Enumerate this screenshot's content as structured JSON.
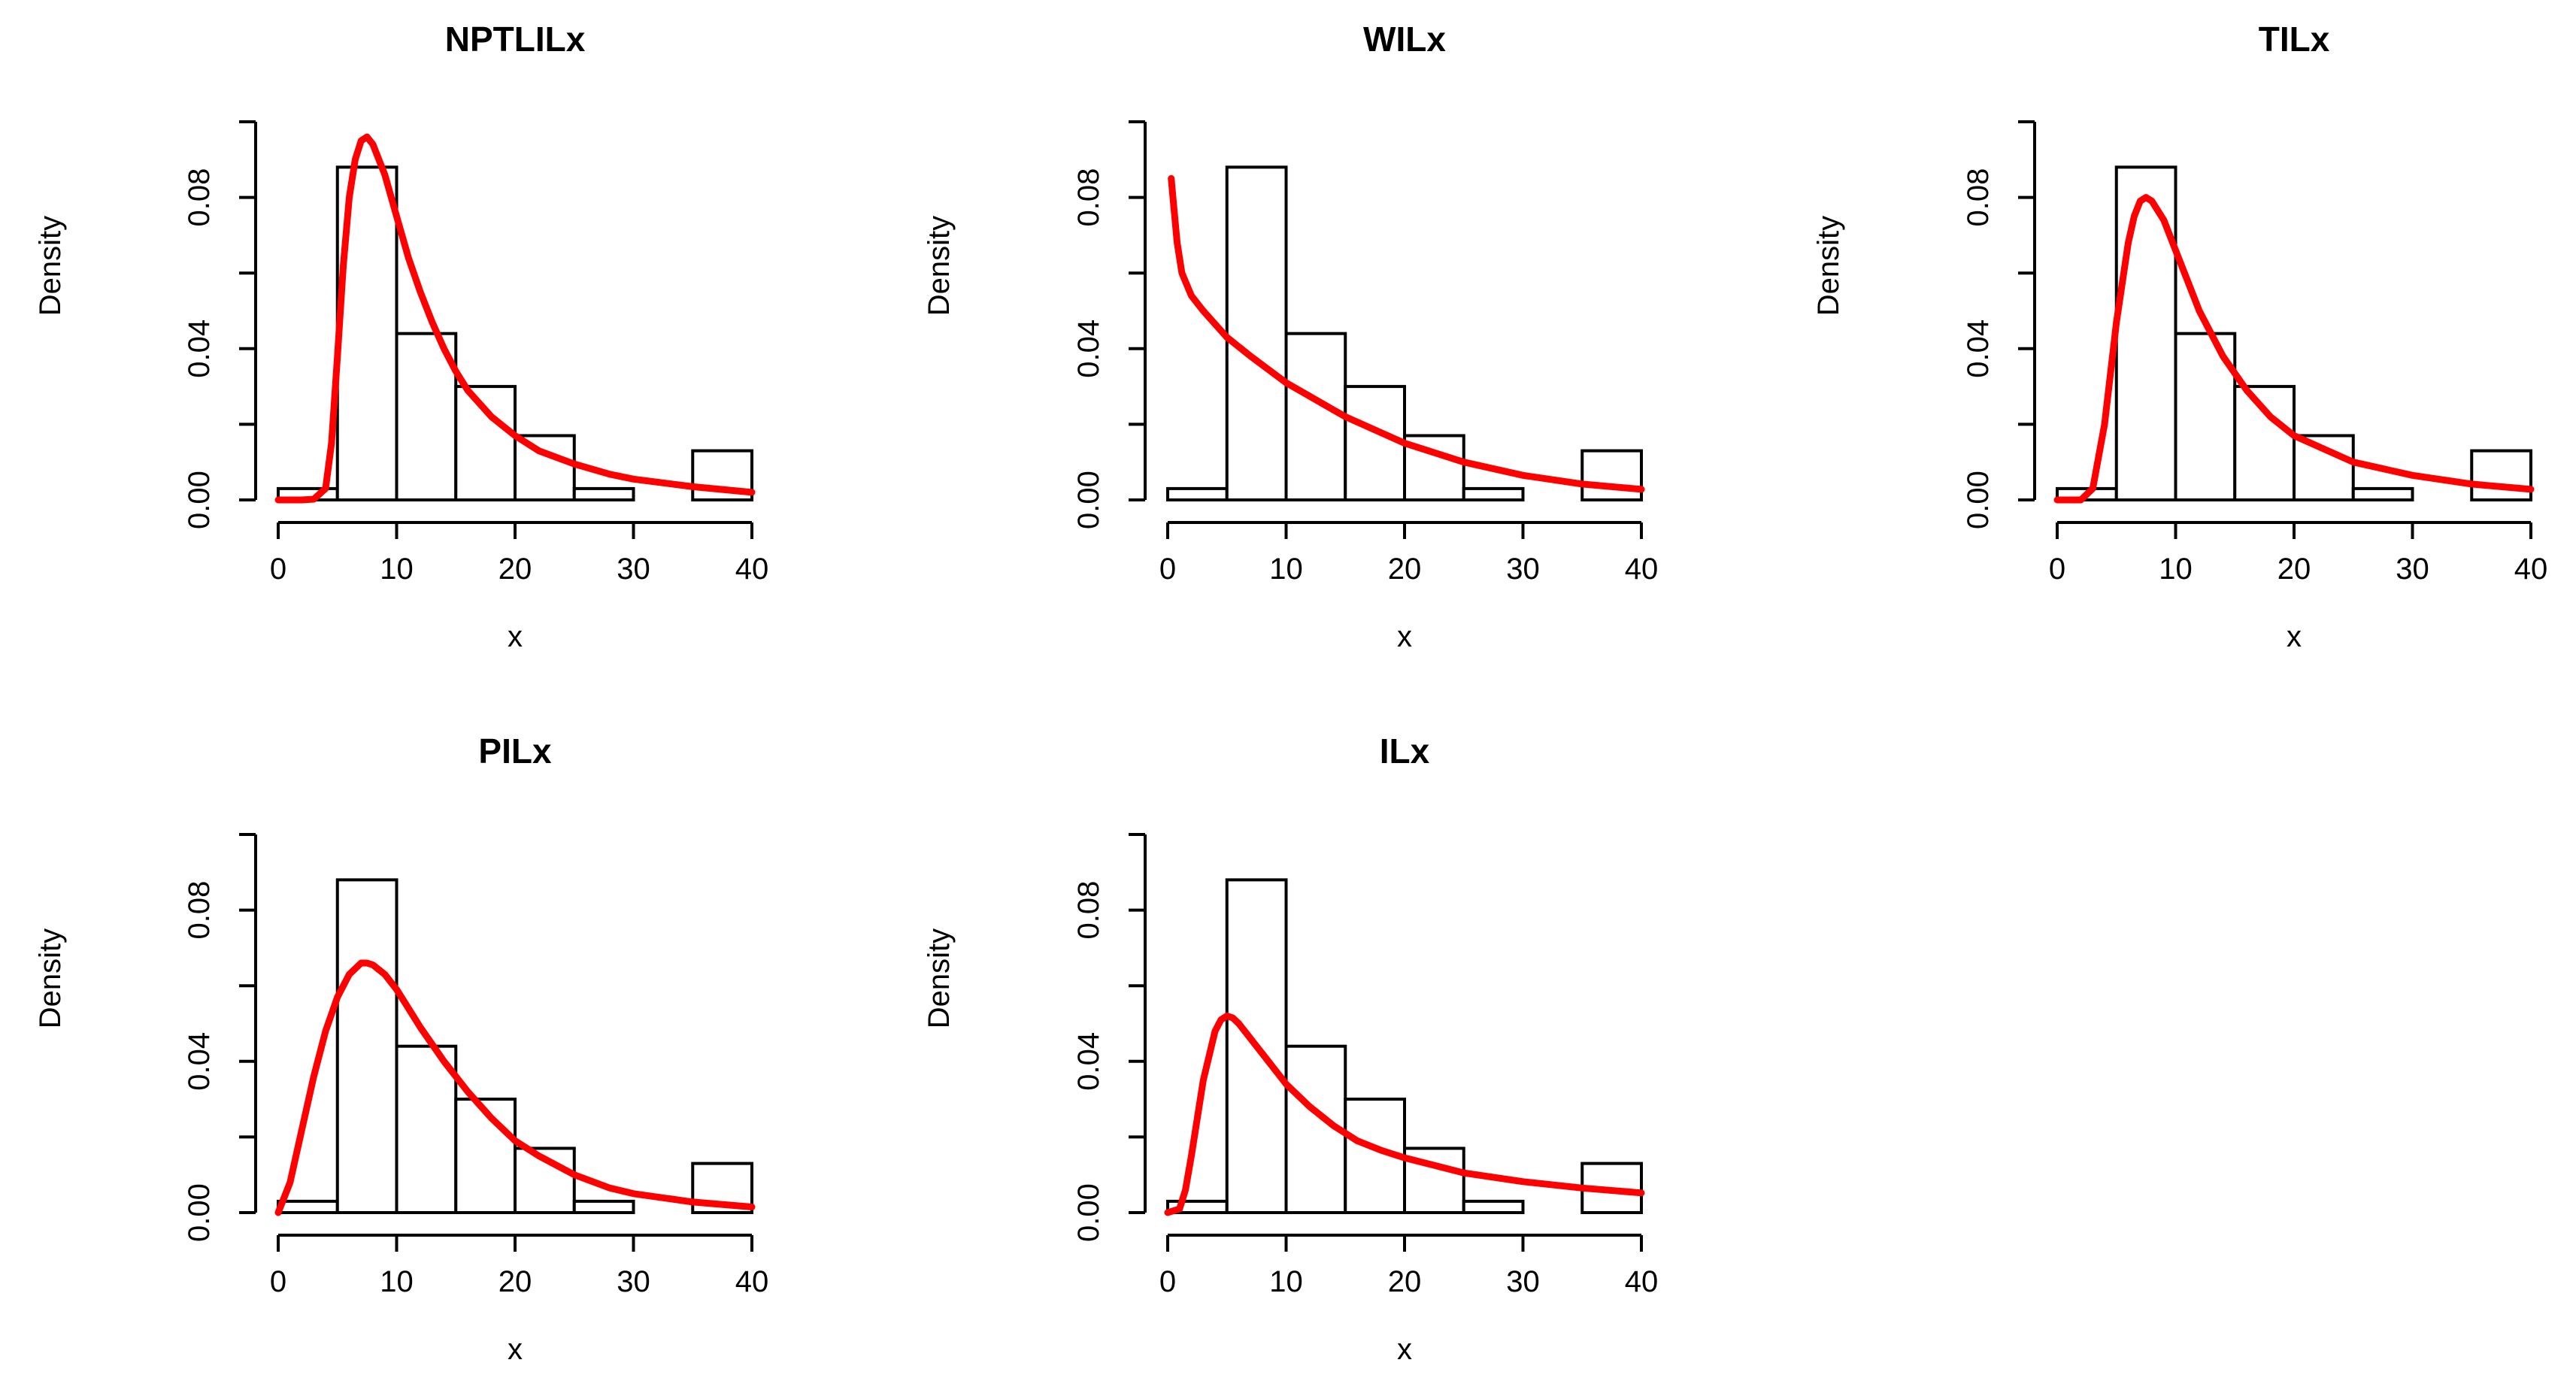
{
  "colors": {
    "curve": "#ff0000",
    "bar_stroke": "#000000",
    "bar_fill": "#ffffff",
    "axis": "#000000"
  },
  "chart_data": [
    {
      "type": "bar",
      "title": "NPTLILx",
      "xlabel": "x",
      "ylabel": "Density",
      "xlim": [
        0,
        40
      ],
      "ylim": [
        0,
        0.1
      ],
      "x_ticks": [
        0,
        10,
        20,
        30,
        40
      ],
      "y_ticks": [
        0,
        0.02,
        0.04,
        0.06,
        0.08,
        0.1
      ],
      "y_tick_labels": [
        "0.00",
        "0.04",
        "0.08"
      ],
      "bin_edges": [
        0,
        5,
        10,
        15,
        20,
        25,
        30,
        35,
        40
      ],
      "histogram_density": [
        0.003,
        0.088,
        0.044,
        0.03,
        0.017,
        0.003,
        0,
        0.013
      ],
      "fitted_curve": {
        "x": [
          0,
          2,
          3,
          4,
          4.5,
          5,
          5.5,
          6,
          6.5,
          7,
          7.5,
          8,
          9,
          10,
          11,
          12,
          13,
          14,
          15,
          16,
          18,
          20,
          22,
          25,
          28,
          30,
          35,
          40
        ],
        "y": [
          0,
          0,
          0.0002,
          0.003,
          0.015,
          0.038,
          0.062,
          0.08,
          0.09,
          0.095,
          0.096,
          0.094,
          0.086,
          0.075,
          0.064,
          0.055,
          0.047,
          0.04,
          0.034,
          0.029,
          0.022,
          0.017,
          0.013,
          0.0095,
          0.0068,
          0.0055,
          0.0035,
          0.002
        ]
      }
    },
    {
      "type": "bar",
      "title": "WILx",
      "xlabel": "x",
      "ylabel": "Density",
      "xlim": [
        0,
        40
      ],
      "ylim": [
        0,
        0.1
      ],
      "x_ticks": [
        0,
        10,
        20,
        30,
        40
      ],
      "y_ticks": [
        0,
        0.02,
        0.04,
        0.06,
        0.08,
        0.1
      ],
      "y_tick_labels": [
        "0.00",
        "0.04",
        "0.08"
      ],
      "bin_edges": [
        0,
        5,
        10,
        15,
        20,
        25,
        30,
        35,
        40
      ],
      "histogram_density": [
        0.003,
        0.088,
        0.044,
        0.03,
        0.017,
        0.003,
        0,
        0.013
      ],
      "fitted_curve": {
        "x": [
          0.3,
          0.5,
          0.8,
          1.2,
          2,
          3,
          5,
          7,
          10,
          15,
          20,
          25,
          30,
          35,
          40
        ],
        "y": [
          0.085,
          0.078,
          0.068,
          0.06,
          0.054,
          0.05,
          0.043,
          0.038,
          0.031,
          0.022,
          0.015,
          0.01,
          0.0065,
          0.0042,
          0.0028
        ]
      }
    },
    {
      "type": "bar",
      "title": "TILx",
      "xlabel": "x",
      "ylabel": "Density",
      "xlim": [
        0,
        40
      ],
      "ylim": [
        0,
        0.1
      ],
      "x_ticks": [
        0,
        10,
        20,
        30,
        40
      ],
      "y_ticks": [
        0,
        0.02,
        0.04,
        0.06,
        0.08,
        0.1
      ],
      "y_tick_labels": [
        "0.00",
        "0.04",
        "0.08"
      ],
      "bin_edges": [
        0,
        5,
        10,
        15,
        20,
        25,
        30,
        35,
        40
      ],
      "histogram_density": [
        0.003,
        0.088,
        0.044,
        0.03,
        0.017,
        0.003,
        0,
        0.013
      ],
      "fitted_curve": {
        "x": [
          0,
          2,
          3,
          4,
          5,
          6,
          6.5,
          7,
          7.5,
          8,
          9,
          10,
          11,
          12,
          14,
          16,
          18,
          20,
          25,
          30,
          35,
          40
        ],
        "y": [
          0,
          0,
          0.003,
          0.02,
          0.047,
          0.068,
          0.075,
          0.079,
          0.08,
          0.079,
          0.074,
          0.066,
          0.058,
          0.05,
          0.038,
          0.029,
          0.022,
          0.017,
          0.01,
          0.0065,
          0.0042,
          0.0028
        ]
      }
    },
    {
      "type": "bar",
      "title": "PILx",
      "xlabel": "x",
      "ylabel": "Density",
      "xlim": [
        0,
        40
      ],
      "ylim": [
        0,
        0.1
      ],
      "x_ticks": [
        0,
        10,
        20,
        30,
        40
      ],
      "y_ticks": [
        0,
        0.02,
        0.04,
        0.06,
        0.08,
        0.1
      ],
      "y_tick_labels": [
        "0.00",
        "0.04",
        "0.08"
      ],
      "bin_edges": [
        0,
        5,
        10,
        15,
        20,
        25,
        30,
        35,
        40
      ],
      "histogram_density": [
        0.003,
        0.088,
        0.044,
        0.03,
        0.017,
        0.003,
        0,
        0.013
      ],
      "fitted_curve": {
        "x": [
          0,
          1,
          2,
          3,
          4,
          5,
          6,
          7,
          7.5,
          8,
          9,
          10,
          11,
          12,
          14,
          16,
          18,
          20,
          22,
          25,
          28,
          30,
          35,
          40
        ],
        "y": [
          0,
          0.008,
          0.022,
          0.036,
          0.048,
          0.057,
          0.063,
          0.066,
          0.066,
          0.0655,
          0.063,
          0.059,
          0.054,
          0.049,
          0.04,
          0.032,
          0.025,
          0.019,
          0.015,
          0.01,
          0.0065,
          0.005,
          0.0028,
          0.0015
        ]
      }
    },
    {
      "type": "bar",
      "title": "ILx",
      "xlabel": "x",
      "ylabel": "Density",
      "xlim": [
        0,
        40
      ],
      "ylim": [
        0,
        0.1
      ],
      "x_ticks": [
        0,
        10,
        20,
        30,
        40
      ],
      "y_ticks": [
        0,
        0.02,
        0.04,
        0.06,
        0.08,
        0.1
      ],
      "y_tick_labels": [
        "0.00",
        "0.04",
        "0.08"
      ],
      "bin_edges": [
        0,
        5,
        10,
        15,
        20,
        25,
        30,
        35,
        40
      ],
      "histogram_density": [
        0.003,
        0.088,
        0.044,
        0.03,
        0.017,
        0.003,
        0,
        0.013
      ],
      "fitted_curve": {
        "x": [
          0,
          1,
          1.5,
          2,
          3,
          4,
          4.5,
          5,
          5.5,
          6,
          7,
          8,
          9,
          10,
          12,
          14,
          16,
          18,
          20,
          25,
          30,
          35,
          40
        ],
        "y": [
          0,
          0.001,
          0.006,
          0.015,
          0.035,
          0.048,
          0.051,
          0.052,
          0.0515,
          0.05,
          0.046,
          0.042,
          0.038,
          0.034,
          0.028,
          0.023,
          0.019,
          0.0165,
          0.0145,
          0.0105,
          0.0082,
          0.0065,
          0.0052
        ]
      }
    }
  ]
}
